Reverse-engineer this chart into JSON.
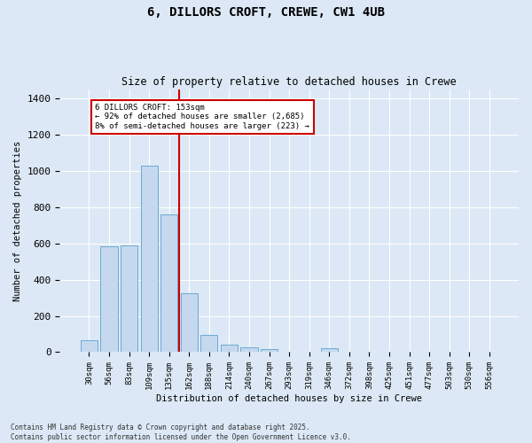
{
  "title": "6, DILLORS CROFT, CREWE, CW1 4UB",
  "subtitle": "Size of property relative to detached houses in Crewe",
  "xlabel": "Distribution of detached houses by size in Crewe",
  "ylabel": "Number of detached properties",
  "bar_color": "#c5d8ee",
  "bar_edge_color": "#6aaad4",
  "background_color": "#dce8f5",
  "grid_color": "#ffffff",
  "annotation_box_color": "#cc0000",
  "vline_color": "#cc0000",
  "annotation_line1": "6 DILLORS CROFT: 153sqm",
  "annotation_line2": "← 92% of detached houses are smaller (2,685)",
  "annotation_line3": "8% of semi-detached houses are larger (223) →",
  "categories": [
    "30sqm",
    "56sqm",
    "83sqm",
    "109sqm",
    "135sqm",
    "162sqm",
    "188sqm",
    "214sqm",
    "240sqm",
    "267sqm",
    "293sqm",
    "319sqm",
    "346sqm",
    "372sqm",
    "398sqm",
    "425sqm",
    "451sqm",
    "477sqm",
    "503sqm",
    "530sqm",
    "556sqm"
  ],
  "values": [
    65,
    585,
    590,
    1030,
    760,
    325,
    95,
    40,
    25,
    15,
    0,
    0,
    20,
    0,
    0,
    0,
    0,
    0,
    0,
    0,
    0
  ],
  "vline_x": 4.5,
  "ylim": [
    0,
    1450
  ],
  "yticks": [
    0,
    200,
    400,
    600,
    800,
    1000,
    1200,
    1400
  ],
  "footnote": "Contains HM Land Registry data © Crown copyright and database right 2025.\nContains public sector information licensed under the Open Government Licence v3.0."
}
